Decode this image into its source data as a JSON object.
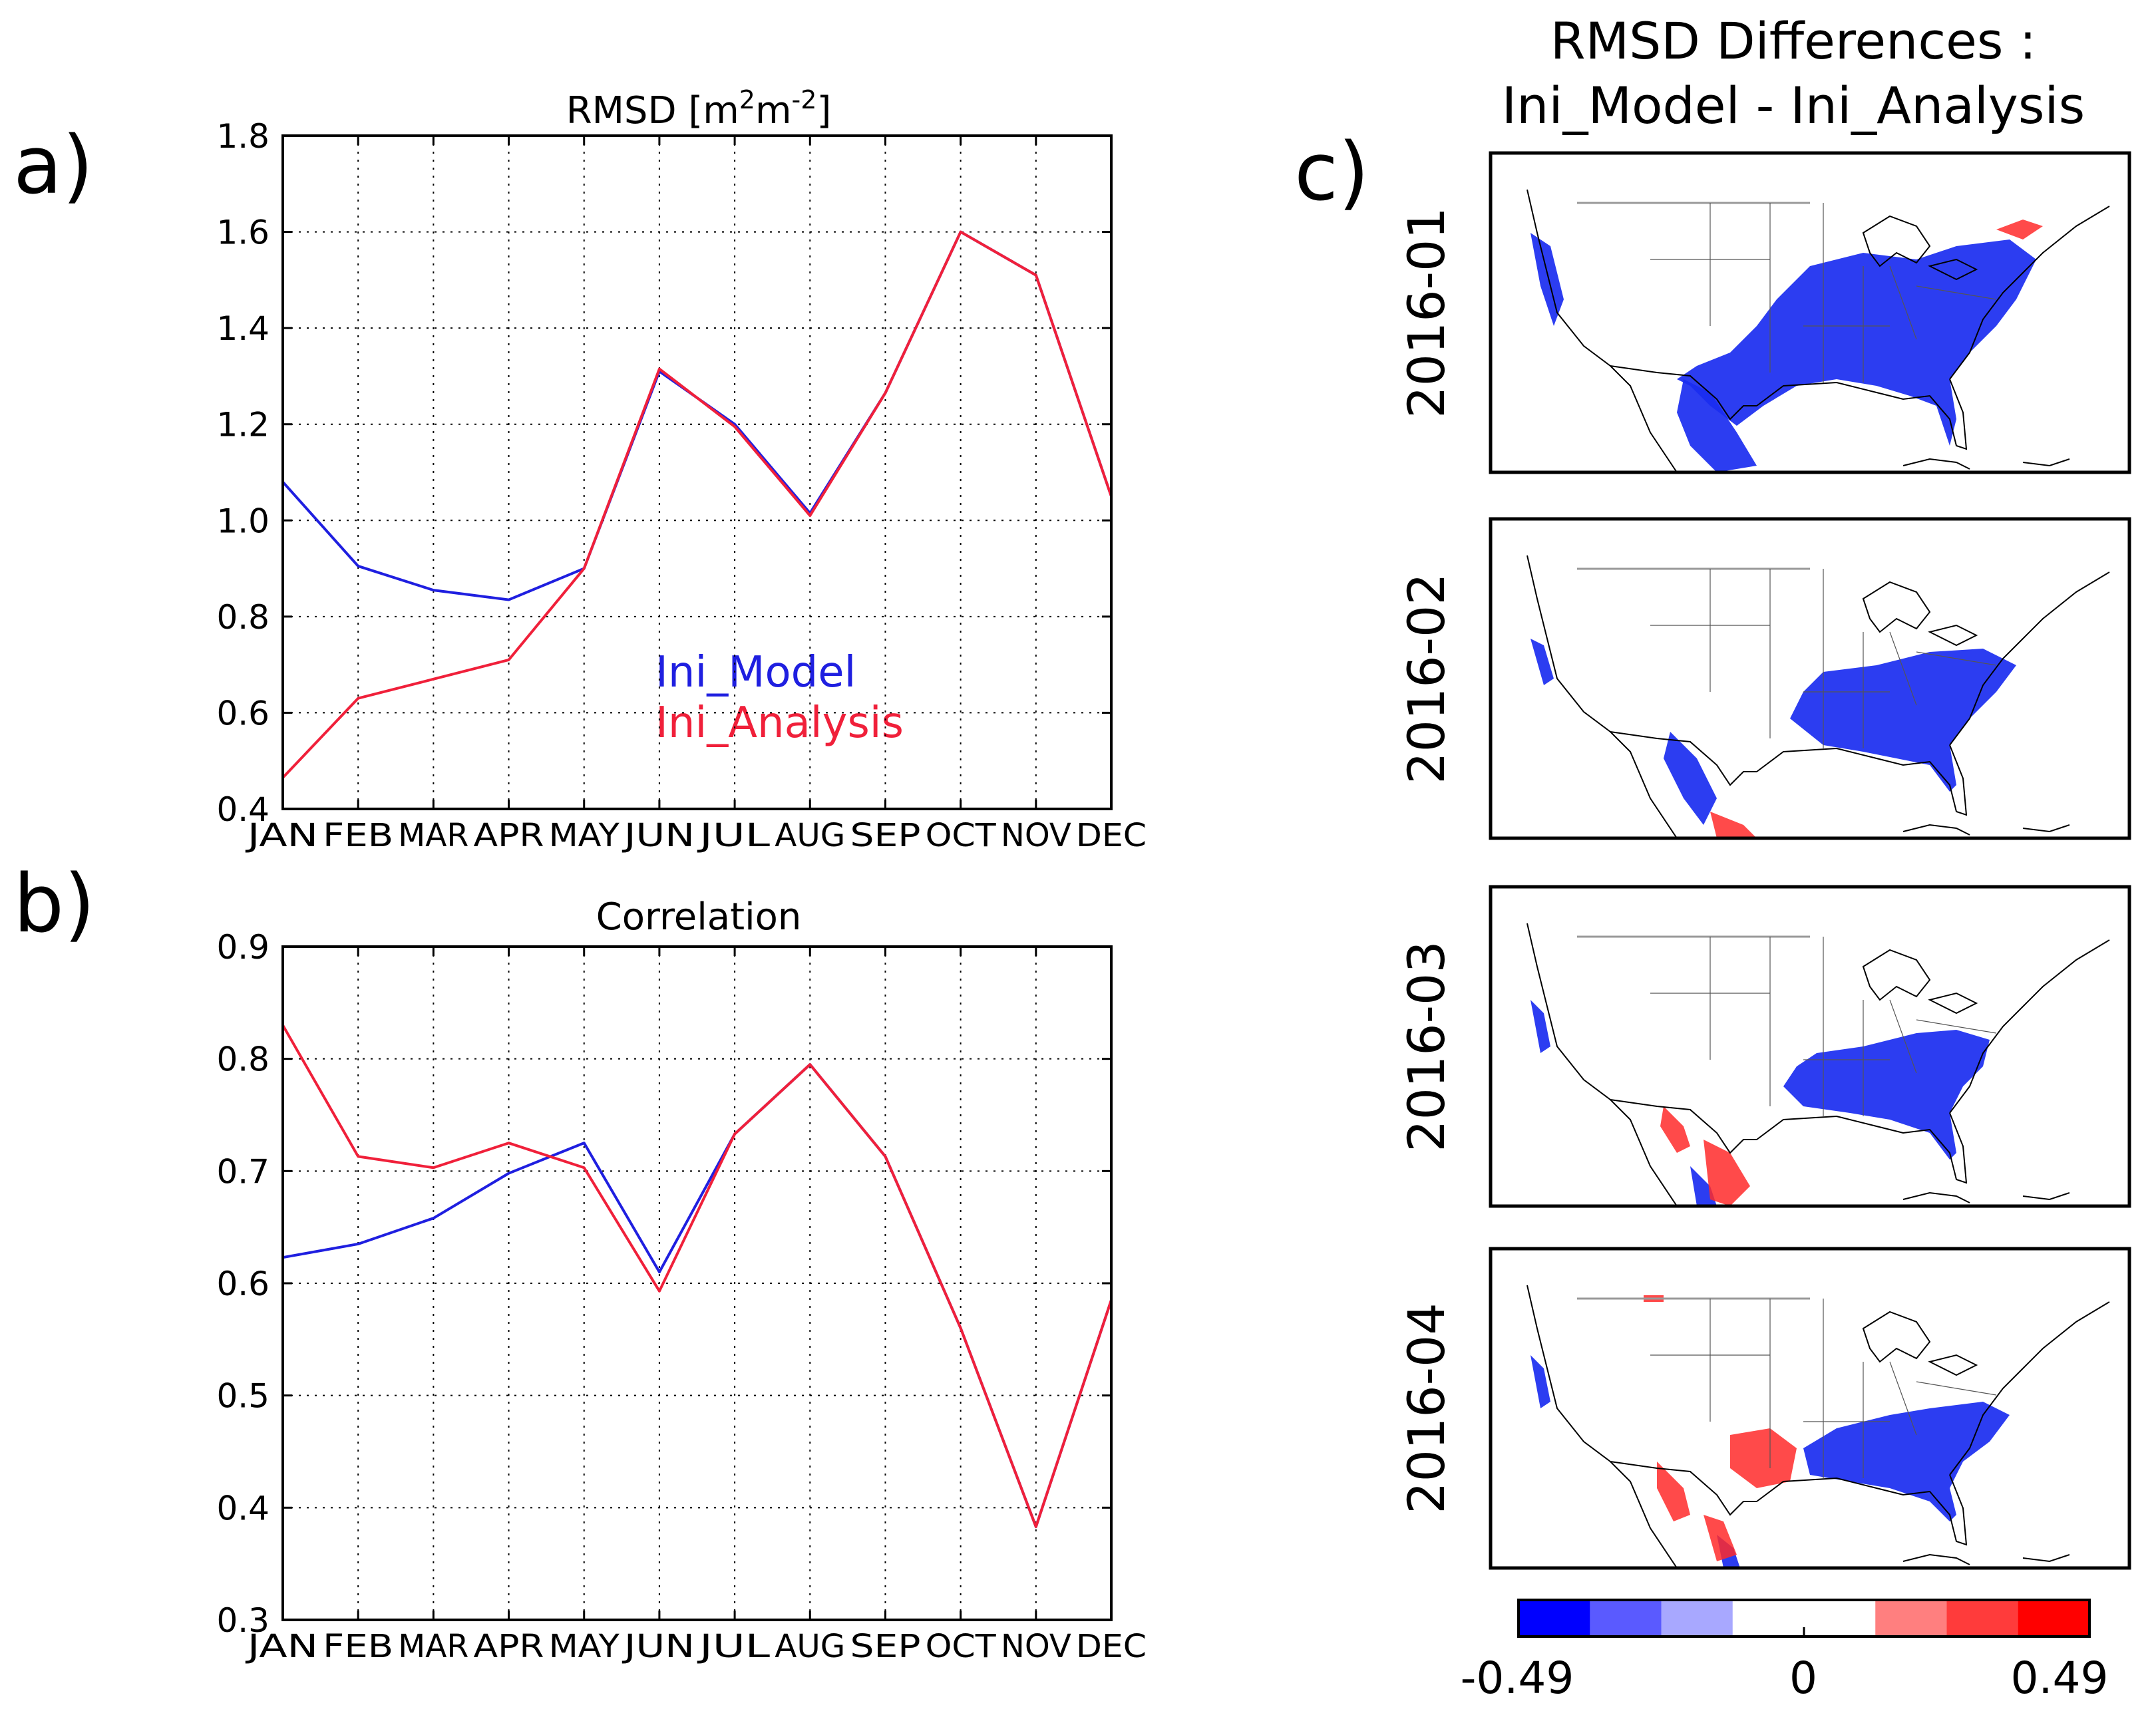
{
  "panel_labels": [
    "a)",
    "b)",
    "c)"
  ],
  "colors": {
    "ini_model": "#1f1fe0",
    "ini_analysis": "#f0203a"
  },
  "chart_data": [
    {
      "id": "rmsd",
      "type": "line",
      "title": "RMSD [m2m-2]",
      "title_parts": [
        "RMSD [m",
        "2",
        "m",
        "-2",
        "]"
      ],
      "xlabel": "",
      "ylabel": "",
      "categories": [
        "JAN",
        "FEB",
        "MAR",
        "APR",
        "MAY",
        "JUN",
        "JUL",
        "AUG",
        "SEP",
        "OCT",
        "NOV",
        "DEC"
      ],
      "ylim": [
        0.4,
        1.8
      ],
      "yticks": [
        "0.4",
        "0.6",
        "0.8",
        "1.0",
        "1.2",
        "1.4",
        "1.6",
        "1.8"
      ],
      "grid": true,
      "legend_position": "center-right",
      "series": [
        {
          "name": "Ini_Model",
          "color": "#1f1fe0",
          "values": [
            1.08,
            0.905,
            0.855,
            0.835,
            0.9,
            1.31,
            1.2,
            1.015,
            1.265,
            1.6,
            1.51,
            1.05
          ]
        },
        {
          "name": "Ini_Analysis",
          "color": "#f0203a",
          "values": [
            0.465,
            0.63,
            0.67,
            0.71,
            0.9,
            1.315,
            1.195,
            1.01,
            1.265,
            1.6,
            1.51,
            1.05
          ]
        }
      ]
    },
    {
      "id": "correlation",
      "type": "line",
      "title": "Correlation",
      "xlabel": "",
      "ylabel": "",
      "categories": [
        "JAN",
        "FEB",
        "MAR",
        "APR",
        "MAY",
        "JUN",
        "JUL",
        "AUG",
        "SEP",
        "OCT",
        "NOV",
        "DEC"
      ],
      "ylim": [
        0.3,
        0.9
      ],
      "yticks": [
        "0.3",
        "0.4",
        "0.5",
        "0.6",
        "0.7",
        "0.8",
        "0.9"
      ],
      "grid": true,
      "series": [
        {
          "name": "Ini_Model",
          "color": "#1f1fe0",
          "values": [
            0.623,
            0.635,
            0.658,
            0.698,
            0.725,
            0.61,
            0.733,
            0.795,
            0.713,
            0.56,
            0.383,
            0.585
          ]
        },
        {
          "name": "Ini_Analysis",
          "color": "#f0203a",
          "values": [
            0.83,
            0.713,
            0.703,
            0.725,
            0.703,
            0.593,
            0.733,
            0.795,
            0.713,
            0.56,
            0.383,
            0.585
          ]
        }
      ]
    },
    {
      "id": "rmsd-differences-maps",
      "type": "heatmap",
      "title_line1": "RMSD Differences :",
      "title_line2": "Ini_Model - Ini_Analysis",
      "maps": [
        {
          "label": "2016-01"
        },
        {
          "label": "2016-02"
        },
        {
          "label": "2016-03"
        },
        {
          "label": "2016-04"
        }
      ],
      "colorbar": {
        "min_label": "-0.49",
        "mid_label": "0",
        "max_label": "0.49",
        "range": [
          -0.49,
          0.49
        ],
        "colors": [
          "#0000ff",
          "#5a5aff",
          "#a8a8ff",
          "#ffffff",
          "#ffffff",
          "#ff7f7f",
          "#ff3b3b",
          "#ff0000"
        ]
      }
    }
  ]
}
